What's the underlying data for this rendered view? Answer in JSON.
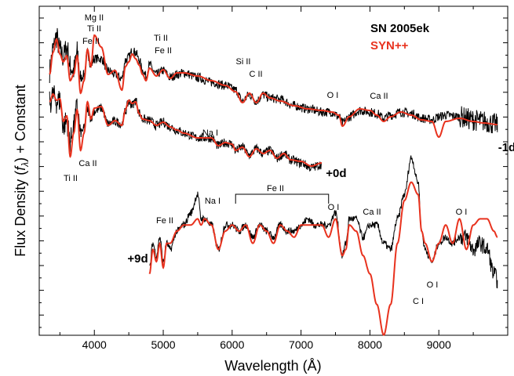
{
  "chart_data": {
    "type": "line",
    "xlabel": "Wavelength (Å)",
    "ylabel": "Flux Density (f_λ) + Constant",
    "ylabel_parts": [
      "Flux Density (",
      "f",
      "λ",
      ") + Constant"
    ],
    "xlim": [
      3200,
      10000
    ],
    "x_ticks": [
      4000,
      5000,
      6000,
      7000,
      8000,
      9000
    ],
    "y_ticks_labeled": false,
    "grid": false,
    "legend_position": "top-right",
    "legend": [
      {
        "label": "SN 2005ek",
        "color": "#000000"
      },
      {
        "label": "SYN++",
        "color": "#e8321e"
      }
    ],
    "epochs": [
      {
        "label": "-1d",
        "wavelength_range": [
          3350,
          9850
        ],
        "observed": {
          "x": [
            3350,
            3400,
            3450,
            3500,
            3550,
            3600,
            3650,
            3700,
            3750,
            3800,
            3850,
            3900,
            3950,
            4000,
            4100,
            4200,
            4300,
            4400,
            4450,
            4500,
            4550,
            4600,
            4650,
            4700,
            4750,
            4800,
            4900,
            5000,
            5100,
            5200,
            5300,
            5500,
            5700,
            5900,
            6050,
            6150,
            6250,
            6350,
            6450,
            6550,
            6700,
            6900,
            7100,
            7300,
            7450,
            7550,
            7600,
            7700,
            7850,
            8000,
            8100,
            8200,
            8300,
            8450,
            8600,
            8750,
            8900,
            9000,
            9100,
            9300,
            9500,
            9650,
            9850
          ],
          "y": [
            0.55,
            0.82,
            0.98,
            0.8,
            0.72,
            0.85,
            0.6,
            0.55,
            0.78,
            0.45,
            0.5,
            0.78,
            0.62,
            0.7,
            0.7,
            0.55,
            0.5,
            0.45,
            0.68,
            0.72,
            0.8,
            0.78,
            0.68,
            0.55,
            0.48,
            0.62,
            0.5,
            0.55,
            0.46,
            0.5,
            0.52,
            0.46,
            0.4,
            0.36,
            0.3,
            0.16,
            0.24,
            0.16,
            0.24,
            0.2,
            0.18,
            0.1,
            0.06,
            0.02,
            0.02,
            -0.04,
            -0.12,
            -0.04,
            0.04,
            0.02,
            0.0,
            -0.06,
            -0.02,
            0.02,
            0.0,
            -0.06,
            -0.08,
            -0.04,
            -0.02,
            -0.04,
            -0.08,
            -0.1,
            -0.14
          ]
        },
        "model": {
          "x": [
            3350,
            3400,
            3450,
            3500,
            3550,
            3600,
            3650,
            3700,
            3750,
            3800,
            3850,
            3900,
            3950,
            4000,
            4100,
            4200,
            4300,
            4400,
            4450,
            4500,
            4550,
            4600,
            4650,
            4700,
            4750,
            4800,
            4900,
            5000,
            5100,
            5200,
            5300,
            5500,
            5700,
            5900,
            6050,
            6150,
            6250,
            6350,
            6450,
            6550,
            6700,
            6900,
            7100,
            7300,
            7450,
            7550,
            7600,
            7700,
            7850,
            8000,
            8100,
            8200,
            8300,
            8450,
            8600,
            8750,
            8900,
            9000,
            9100,
            9300,
            9500,
            9650,
            9850
          ],
          "y": [
            0.5,
            0.78,
            0.95,
            0.76,
            0.66,
            0.74,
            0.42,
            0.5,
            0.74,
            0.26,
            0.42,
            0.82,
            0.6,
            1.0,
            0.85,
            0.5,
            0.55,
            0.3,
            0.6,
            0.66,
            0.76,
            0.7,
            0.62,
            0.5,
            0.42,
            0.58,
            0.48,
            0.56,
            0.45,
            0.52,
            0.52,
            0.48,
            0.42,
            0.36,
            0.28,
            0.14,
            0.26,
            0.14,
            0.26,
            0.2,
            0.16,
            0.1,
            0.06,
            0.04,
            0.02,
            -0.02,
            -0.16,
            -0.04,
            0.06,
            0.04,
            -0.02,
            -0.1,
            -0.04,
            0.02,
            -0.02,
            -0.08,
            -0.1,
            -0.3,
            -0.1,
            -0.06,
            -0.1,
            -0.12,
            -0.14
          ]
        }
      },
      {
        "label": "+0d",
        "wavelength_range": [
          3350,
          7300
        ],
        "observed": {
          "x": [
            3350,
            3400,
            3450,
            3500,
            3550,
            3600,
            3650,
            3700,
            3750,
            3800,
            3850,
            3900,
            3950,
            4000,
            4100,
            4200,
            4300,
            4400,
            4450,
            4500,
            4550,
            4600,
            4650,
            4700,
            4800,
            4900,
            5000,
            5100,
            5200,
            5300,
            5500,
            5700,
            5800,
            5900,
            6000,
            6050,
            6150,
            6250,
            6350,
            6450,
            6550,
            6650,
            6750,
            6850,
            7000,
            7150,
            7300
          ],
          "y": [
            0.68,
            0.78,
            0.7,
            0.72,
            0.4,
            0.45,
            0.2,
            0.38,
            0.62,
            0.3,
            0.36,
            0.6,
            0.5,
            0.58,
            0.62,
            0.42,
            0.45,
            0.42,
            0.58,
            0.7,
            0.66,
            0.72,
            0.56,
            0.48,
            0.46,
            0.4,
            0.44,
            0.38,
            0.34,
            0.3,
            0.24,
            0.24,
            0.14,
            0.18,
            0.16,
            0.08,
            0.12,
            0.02,
            0.1,
            0.04,
            0.08,
            -0.02,
            0.04,
            -0.04,
            -0.08,
            -0.14,
            -0.1
          ]
        },
        "model": {
          "x": [
            3350,
            3400,
            3450,
            3500,
            3550,
            3600,
            3650,
            3700,
            3750,
            3800,
            3850,
            3900,
            3950,
            4000,
            4100,
            4200,
            4300,
            4400,
            4450,
            4500,
            4550,
            4600,
            4650,
            4700,
            4800,
            4900,
            5000,
            5100,
            5200,
            5300,
            5500,
            5700,
            5800,
            5900,
            6000,
            6050,
            6150,
            6250,
            6350,
            6450,
            6550,
            6650,
            6750,
            6850,
            7000,
            7150,
            7300
          ],
          "y": [
            0.7,
            0.8,
            0.72,
            0.74,
            0.45,
            0.52,
            0.0,
            0.3,
            0.6,
            0.08,
            0.3,
            0.7,
            0.48,
            0.62,
            0.64,
            0.4,
            0.46,
            0.4,
            0.6,
            0.72,
            0.68,
            0.7,
            0.55,
            0.48,
            0.46,
            0.4,
            0.44,
            0.38,
            0.34,
            0.3,
            0.24,
            0.24,
            0.14,
            0.18,
            0.16,
            0.08,
            0.12,
            0.0,
            0.1,
            0.04,
            0.08,
            -0.02,
            0.04,
            -0.04,
            -0.06,
            -0.12,
            -0.08
          ]
        }
      },
      {
        "label": "+9d",
        "wavelength_range": [
          4800,
          9850
        ],
        "observed": {
          "x": [
            4800,
            4850,
            4900,
            4950,
            5000,
            5050,
            5100,
            5200,
            5300,
            5400,
            5500,
            5550,
            5600,
            5700,
            5800,
            5900,
            6000,
            6100,
            6200,
            6300,
            6400,
            6500,
            6600,
            6700,
            6800,
            6900,
            7000,
            7100,
            7200,
            7300,
            7400,
            7500,
            7600,
            7650,
            7700,
            7800,
            7900,
            8000,
            8100,
            8200,
            8300,
            8400,
            8500,
            8600,
            8700,
            8750,
            8800,
            8900,
            9000,
            9100,
            9200,
            9300,
            9400,
            9500,
            9600,
            9700,
            9800,
            9850
          ],
          "y": [
            -0.6,
            -0.2,
            -0.4,
            -0.1,
            -0.5,
            -0.2,
            -0.3,
            0.0,
            0.1,
            0.3,
            0.6,
            0.2,
            0.2,
            0.1,
            -0.3,
            0.1,
            0.1,
            0.0,
            0.1,
            -0.1,
            0.1,
            0.0,
            -0.1,
            0.1,
            0.0,
            0.0,
            0.1,
            0.2,
            0.1,
            0.1,
            0.1,
            0.3,
            -0.4,
            -0.2,
            0.2,
            0.2,
            -0.1,
            0.1,
            0.1,
            -0.2,
            -0.3,
            0.2,
            0.6,
            1.2,
            0.8,
            0.0,
            -0.3,
            -0.5,
            -0.2,
            -0.1,
            -0.2,
            -0.1,
            -0.1,
            -0.3,
            -0.2,
            -0.3,
            -0.7,
            -0.8
          ]
        },
        "model": {
          "x": [
            4800,
            4850,
            4900,
            4950,
            5000,
            5050,
            5100,
            5200,
            5300,
            5400,
            5500,
            5550,
            5600,
            5700,
            5800,
            5900,
            6000,
            6100,
            6200,
            6300,
            6400,
            6500,
            6600,
            6700,
            6800,
            6900,
            7000,
            7100,
            7200,
            7300,
            7400,
            7500,
            7600,
            7650,
            7700,
            7800,
            7900,
            8000,
            8100,
            8200,
            8300,
            8400,
            8500,
            8600,
            8700,
            8750,
            8800,
            8900,
            9000,
            9100,
            9200,
            9300,
            9400,
            9500,
            9600,
            9700,
            9800,
            9850
          ],
          "y": [
            -0.7,
            -0.3,
            -0.5,
            -0.2,
            -0.6,
            -0.2,
            -0.2,
            0.0,
            0.1,
            0.1,
            0.2,
            0.1,
            0.2,
            0.1,
            -0.3,
            0.0,
            0.1,
            0.0,
            0.1,
            -0.2,
            0.1,
            0.0,
            -0.2,
            0.1,
            0.0,
            -0.1,
            0.1,
            0.1,
            0.1,
            0.1,
            -0.1,
            0.2,
            -0.4,
            -0.3,
            0.1,
            0.0,
            -0.4,
            -0.7,
            -1.2,
            -1.7,
            -1.2,
            -0.2,
            0.5,
            0.8,
            0.6,
            0.0,
            -0.2,
            -0.5,
            -0.2,
            0.1,
            -0.2,
            0.2,
            -0.3,
            0.1,
            0.2,
            0.2,
            0.0,
            -0.1
          ]
        }
      }
    ],
    "annotations": [
      {
        "text": "Mg II",
        "epoch": "-1d",
        "wavelength": 3950
      },
      {
        "text": "Ti II",
        "epoch": "-1d",
        "wavelength": 3950
      },
      {
        "text": "Fe II",
        "epoch": "-1d",
        "wavelength": 3850
      },
      {
        "text": "Ti II",
        "epoch": "-1d",
        "wavelength": 5000
      },
      {
        "text": "Fe II",
        "epoch": "-1d",
        "wavelength": 5000
      },
      {
        "text": "Si II",
        "epoch": "-1d",
        "wavelength": 6200
      },
      {
        "text": "C II",
        "epoch": "-1d",
        "wavelength": 6350
      },
      {
        "text": "O I",
        "epoch": "-1d",
        "wavelength": 7600
      },
      {
        "text": "Ca II",
        "epoch": "-1d",
        "wavelength": 8450
      },
      {
        "text": "Na I",
        "epoch": "+0d",
        "wavelength": 5750
      },
      {
        "text": "Ti II",
        "epoch": "+0d",
        "wavelength": 3650
      },
      {
        "text": "Ca II",
        "epoch": "+0d",
        "wavelength": 3850
      },
      {
        "text": "Fe II",
        "epoch": "+9d",
        "wavelength": 5050
      },
      {
        "text": "Na I",
        "epoch": "+9d",
        "wavelength": 5750
      },
      {
        "text": "Fe II",
        "epoch": "+9d",
        "wavelength": 6700,
        "bracket_range": [
          6050,
          7400
        ]
      },
      {
        "text": "O I",
        "epoch": "+9d",
        "wavelength": 7600
      },
      {
        "text": "Ca II",
        "epoch": "+9d",
        "wavelength": 8150
      },
      {
        "text": "O I",
        "epoch": "+9d",
        "wavelength": 9100
      },
      {
        "text": "C I",
        "epoch": "+9d",
        "wavelength": 8900
      },
      {
        "text": "O I",
        "epoch": "+9d",
        "wavelength": 9250
      }
    ]
  }
}
